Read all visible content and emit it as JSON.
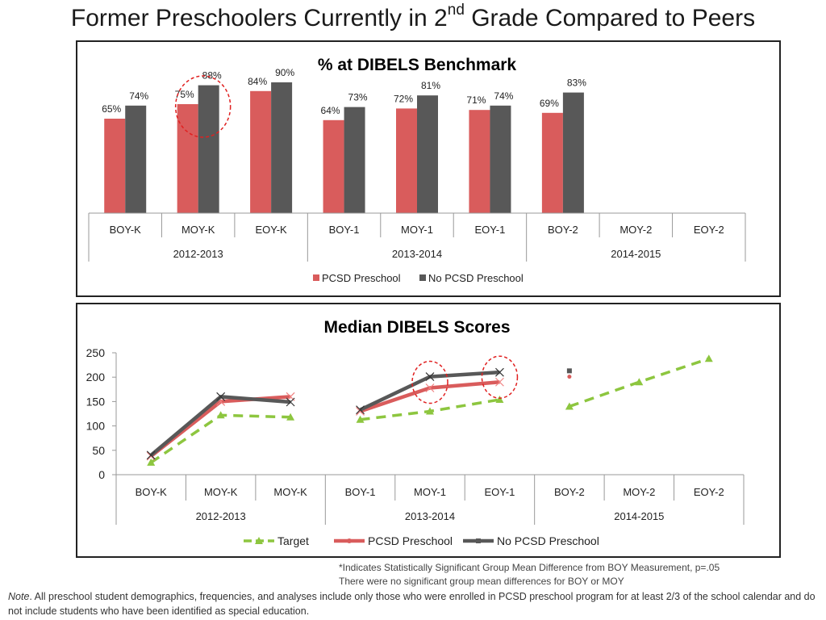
{
  "page": {
    "title_main": "Former Preschoolers Currently in 2",
    "title_sup": "nd",
    "title_end": " Grade Compared to Peers",
    "footnote_line1": "*Indicates Statistically Significant Group Mean Difference from BOY Measurement, p=.05",
    "footnote_line2": "There were no significant group mean differences for BOY or MOY",
    "note_label": "Note",
    "note_text": ". All preschool student demographics, frequencies, and analyses include only those who were enrolled in PCSD preschool program for at least 2/3 of the school calendar and do not include students who have been identified as special education."
  },
  "colors": {
    "pcsd": "#d95c5c",
    "no_pcsd": "#585858",
    "target": "#8dc63f",
    "highlight": "#e02020"
  },
  "chart_data": [
    {
      "type": "bar",
      "title": "% at DIBELS Benchmark",
      "categories": [
        "BOY-K",
        "MOY-K",
        "EOY-K",
        "BOY-1",
        "MOY-1",
        "EOY-1",
        "BOY-2",
        "MOY-2",
        "EOY-2"
      ],
      "groups": [
        {
          "label": "2012-2013",
          "span": 3
        },
        {
          "label": "2013-2014",
          "span": 3
        },
        {
          "label": "2014-2015",
          "span": 3
        }
      ],
      "series": [
        {
          "name": "PCSD Preschool",
          "values": [
            65,
            75,
            84,
            64,
            72,
            71,
            69,
            null,
            null
          ],
          "labels": [
            "65%",
            "75%",
            "84%",
            "64%",
            "72%",
            "71%",
            "69%",
            "",
            ""
          ]
        },
        {
          "name": "No PCSD Preschool",
          "values": [
            74,
            88,
            90,
            73,
            81,
            74,
            83,
            null,
            null
          ],
          "labels": [
            "74%",
            "88%",
            "90%",
            "73%",
            "81%",
            "74%",
            "83%",
            "",
            ""
          ]
        }
      ],
      "ylim": [
        0,
        100
      ],
      "highlighted_category_index": 1,
      "legend": "bottom"
    },
    {
      "type": "line",
      "title": "Median DIBELS Scores",
      "categories": [
        "BOY-K",
        "MOY-K",
        "MOY-K",
        "BOY-1",
        "MOY-1",
        "EOY-1",
        "BOY-2",
        "MOY-2",
        "EOY-2"
      ],
      "groups": [
        {
          "label": "2012-2013",
          "span": 3
        },
        {
          "label": "2013-2014",
          "span": 3
        },
        {
          "label": "2014-2015",
          "span": 3
        }
      ],
      "ylim": [
        0,
        250
      ],
      "yticks": [
        0,
        50,
        100,
        150,
        200,
        250
      ],
      "series": [
        {
          "name": "Target",
          "values": [
            25,
            122,
            118,
            113,
            130,
            154,
            140,
            190,
            238
          ]
        },
        {
          "name": "PCSD Preschool",
          "values": [
            38,
            150,
            160,
            130,
            178,
            190,
            201,
            null,
            null
          ]
        },
        {
          "name": "No PCSD Preschool",
          "values": [
            40,
            160,
            149,
            133,
            201,
            210,
            213,
            null,
            null
          ]
        }
      ],
      "line_breaks_after": [
        2,
        5
      ],
      "highlighted_category_indices": [
        4,
        5
      ],
      "legend": "bottom"
    }
  ]
}
